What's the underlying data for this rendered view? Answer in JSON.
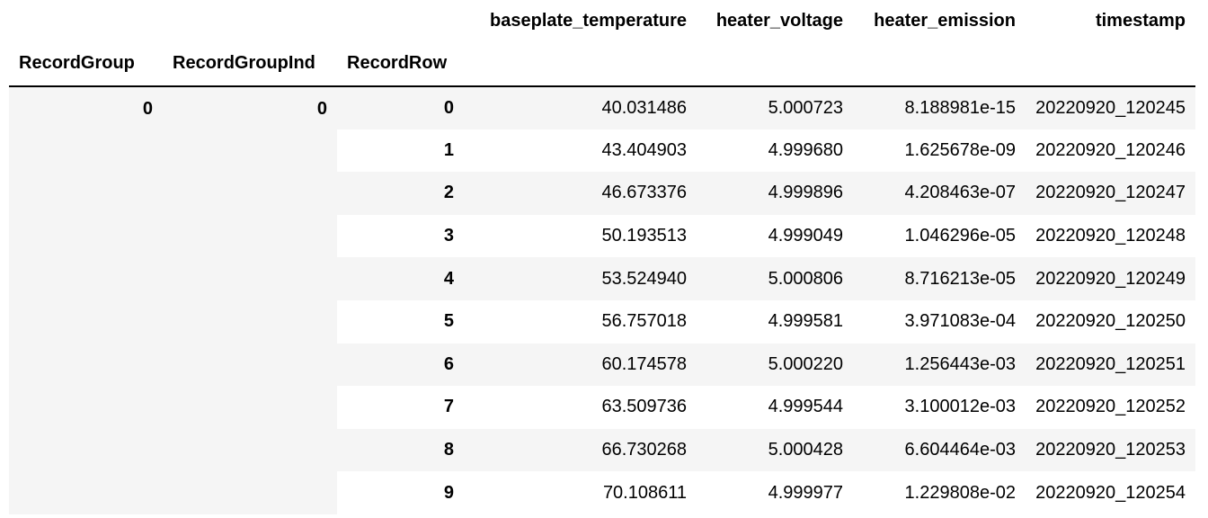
{
  "table": {
    "columns": [
      "baseplate_temperature",
      "heater_voltage",
      "heater_emission",
      "timestamp"
    ],
    "index_names": [
      "RecordGroup",
      "RecordGroupInd",
      "RecordRow"
    ],
    "group": {
      "RecordGroup": "0",
      "RecordGroupInd": "0"
    },
    "rows": [
      {
        "RecordRow": "0",
        "baseplate_temperature": "40.031486",
        "heater_voltage": "5.000723",
        "heater_emission": "8.188981e-15",
        "timestamp": "20220920_120245"
      },
      {
        "RecordRow": "1",
        "baseplate_temperature": "43.404903",
        "heater_voltage": "4.999680",
        "heater_emission": "1.625678e-09",
        "timestamp": "20220920_120246"
      },
      {
        "RecordRow": "2",
        "baseplate_temperature": "46.673376",
        "heater_voltage": "4.999896",
        "heater_emission": "4.208463e-07",
        "timestamp": "20220920_120247"
      },
      {
        "RecordRow": "3",
        "baseplate_temperature": "50.193513",
        "heater_voltage": "4.999049",
        "heater_emission": "1.046296e-05",
        "timestamp": "20220920_120248"
      },
      {
        "RecordRow": "4",
        "baseplate_temperature": "53.524940",
        "heater_voltage": "5.000806",
        "heater_emission": "8.716213e-05",
        "timestamp": "20220920_120249"
      },
      {
        "RecordRow": "5",
        "baseplate_temperature": "56.757018",
        "heater_voltage": "4.999581",
        "heater_emission": "3.971083e-04",
        "timestamp": "20220920_120250"
      },
      {
        "RecordRow": "6",
        "baseplate_temperature": "60.174578",
        "heater_voltage": "5.000220",
        "heater_emission": "1.256443e-03",
        "timestamp": "20220920_120251"
      },
      {
        "RecordRow": "7",
        "baseplate_temperature": "63.509736",
        "heater_voltage": "4.999544",
        "heater_emission": "3.100012e-03",
        "timestamp": "20220920_120252"
      },
      {
        "RecordRow": "8",
        "baseplate_temperature": "66.730268",
        "heater_voltage": "5.000428",
        "heater_emission": "6.604464e-03",
        "timestamp": "20220920_120253"
      },
      {
        "RecordRow": "9",
        "baseplate_temperature": "70.108611",
        "heater_voltage": "4.999977",
        "heater_emission": "1.229808e-02",
        "timestamp": "20220920_120254"
      }
    ]
  },
  "colors": {
    "stripe": "#f5f5f5",
    "rule": "#000000"
  }
}
